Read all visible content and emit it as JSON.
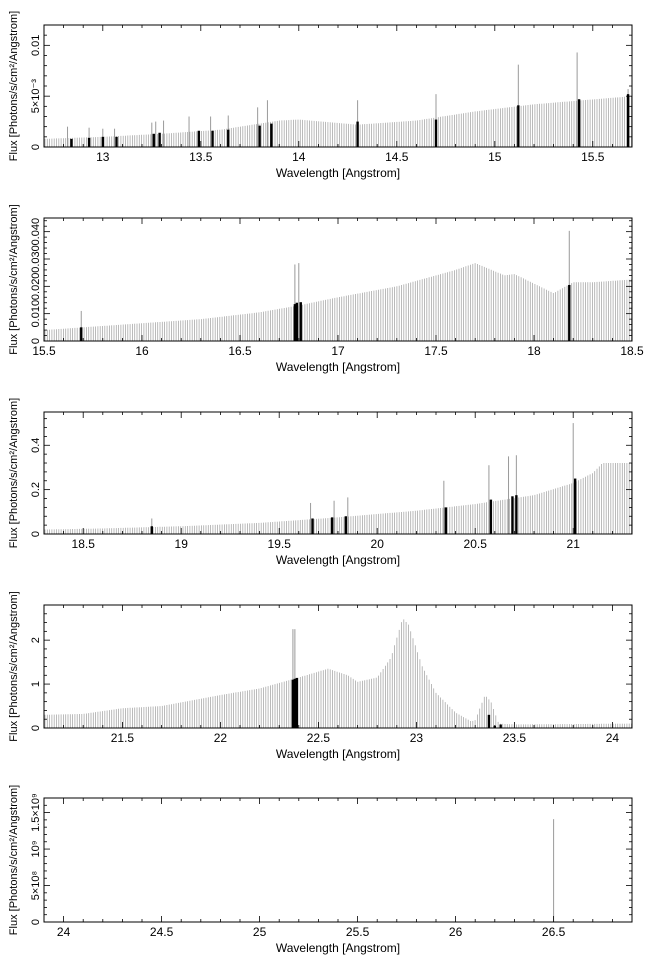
{
  "chart_data": [
    {
      "type": "bar",
      "xlabel": "Wavelength [Angstrom]",
      "ylabel": "Flux [Photons/s/cm²/Angstrom]",
      "xlim": [
        12.7,
        15.7
      ],
      "ylim": [
        0,
        0.012
      ],
      "xticks": [
        13,
        13.5,
        14,
        14.5,
        15,
        15.5
      ],
      "xtick_labels": [
        "13",
        "13.5",
        "14",
        "14.5",
        "15",
        "15.5"
      ],
      "yticks": [
        0,
        0.005,
        0.01
      ],
      "ytick_labels": [
        "0",
        "5×10⁻³",
        "0.01"
      ],
      "continuum": [
        [
          12.7,
          0.0008
        ],
        [
          13.0,
          0.001
        ],
        [
          13.3,
          0.0013
        ],
        [
          13.6,
          0.0017
        ],
        [
          13.9,
          0.0026
        ],
        [
          14.0,
          0.0027
        ],
        [
          14.3,
          0.0022
        ],
        [
          14.6,
          0.0026
        ],
        [
          14.9,
          0.0035
        ],
        [
          15.2,
          0.0042
        ],
        [
          15.45,
          0.0046
        ],
        [
          15.7,
          0.005
        ]
      ],
      "lines": [
        [
          12.82,
          0.002
        ],
        [
          12.93,
          0.0019
        ],
        [
          13.0,
          0.0018
        ],
        [
          13.06,
          0.0018
        ],
        [
          13.25,
          0.0024
        ],
        [
          13.27,
          0.0025
        ],
        [
          13.31,
          0.0026
        ],
        [
          13.44,
          0.003
        ],
        [
          13.55,
          0.003
        ],
        [
          13.64,
          0.0031
        ],
        [
          13.79,
          0.0039
        ],
        [
          13.84,
          0.0046
        ],
        [
          14.3,
          0.0046
        ],
        [
          14.7,
          0.0052
        ],
        [
          15.12,
          0.0081
        ],
        [
          15.42,
          0.0093
        ],
        [
          15.68,
          0.0057
        ]
      ],
      "strong": [
        [
          12.84,
          0.0008
        ],
        [
          12.93,
          0.0009
        ],
        [
          13.0,
          0.001
        ],
        [
          13.07,
          0.001
        ],
        [
          13.26,
          0.0013
        ],
        [
          13.29,
          0.0014
        ],
        [
          13.49,
          0.0016
        ],
        [
          13.56,
          0.0016
        ],
        [
          13.64,
          0.0017
        ],
        [
          13.8,
          0.0021
        ],
        [
          13.86,
          0.0023
        ],
        [
          14.3,
          0.0025
        ],
        [
          14.7,
          0.0027
        ],
        [
          15.12,
          0.0041
        ],
        [
          15.43,
          0.0047
        ],
        [
          15.68,
          0.0052
        ]
      ]
    },
    {
      "type": "bar",
      "xlabel": "Wavelength [Angstrom]",
      "ylabel": "Flux [Photons/s/cm²/Angstrom]",
      "xlim": [
        15.5,
        18.5
      ],
      "ylim": [
        0,
        0.045
      ],
      "xticks": [
        15.5,
        16,
        16.5,
        17,
        17.5,
        18,
        18.5
      ],
      "xtick_labels": [
        "15.5",
        "16",
        "16.5",
        "17",
        "17.5",
        "18",
        "18.5"
      ],
      "yticks": [
        0,
        0.01,
        0.02,
        0.03,
        0.04
      ],
      "ytick_labels": [
        "0",
        "0.010",
        "0.020",
        "0.030",
        "0.040"
      ],
      "continuum": [
        [
          15.5,
          0.004
        ],
        [
          15.7,
          0.005
        ],
        [
          16.0,
          0.0065
        ],
        [
          16.3,
          0.008
        ],
        [
          16.6,
          0.0105
        ],
        [
          16.8,
          0.013
        ],
        [
          17.0,
          0.016
        ],
        [
          17.3,
          0.02
        ],
        [
          17.6,
          0.026
        ],
        [
          17.7,
          0.0285
        ],
        [
          17.75,
          0.027
        ],
        [
          17.85,
          0.024
        ],
        [
          17.9,
          0.0245
        ],
        [
          18.0,
          0.021
        ],
        [
          18.1,
          0.0175
        ],
        [
          18.2,
          0.0215
        ],
        [
          18.3,
          0.0215
        ],
        [
          18.5,
          0.0225
        ]
      ],
      "lines": [
        [
          15.69,
          0.011
        ],
        [
          16.78,
          0.028
        ],
        [
          16.8,
          0.0285
        ],
        [
          18.18,
          0.0403
        ]
      ],
      "strong": [
        [
          15.69,
          0.005
        ],
        [
          16.78,
          0.0135
        ],
        [
          16.79,
          0.014
        ],
        [
          16.81,
          0.0142
        ],
        [
          18.18,
          0.0205
        ]
      ]
    },
    {
      "type": "bar",
      "xlabel": "Wavelength [Angstrom]",
      "ylabel": "Flux [Photons/s/cm²/Angstrom]",
      "xlim": [
        18.3,
        21.3
      ],
      "ylim": [
        0,
        0.55
      ],
      "xticks": [
        18.5,
        19,
        19.5,
        20,
        20.5,
        21
      ],
      "xtick_labels": [
        "18.5",
        "19",
        "19.5",
        "20",
        "20.5",
        "21"
      ],
      "yticks": [
        0,
        0.2,
        0.4
      ],
      "ytick_labels": [
        "0",
        "0.2",
        "0.4"
      ],
      "continuum": [
        [
          18.3,
          0.02
        ],
        [
          18.6,
          0.025
        ],
        [
          19.0,
          0.035
        ],
        [
          19.4,
          0.05
        ],
        [
          19.8,
          0.075
        ],
        [
          20.2,
          0.105
        ],
        [
          20.5,
          0.135
        ],
        [
          20.8,
          0.175
        ],
        [
          21.0,
          0.23
        ],
        [
          21.1,
          0.275
        ],
        [
          21.15,
          0.32
        ],
        [
          21.3,
          0.32
        ]
      ],
      "lines": [
        [
          18.85,
          0.07
        ],
        [
          19.66,
          0.14
        ],
        [
          19.78,
          0.15
        ],
        [
          19.85,
          0.165
        ],
        [
          20.34,
          0.24
        ],
        [
          20.57,
          0.31
        ],
        [
          20.67,
          0.35
        ],
        [
          20.71,
          0.355
        ],
        [
          21.0,
          0.5
        ]
      ],
      "strong": [
        [
          18.85,
          0.035
        ],
        [
          19.67,
          0.07
        ],
        [
          19.77,
          0.075
        ],
        [
          19.84,
          0.08
        ],
        [
          20.35,
          0.12
        ],
        [
          20.58,
          0.155
        ],
        [
          20.69,
          0.17
        ],
        [
          20.71,
          0.175
        ],
        [
          21.01,
          0.25
        ]
      ]
    },
    {
      "type": "bar",
      "xlabel": "Wavelength [Angstrom]",
      "ylabel": "Flux [Photons/s/cm²/Angstrom]",
      "xlim": [
        21.1,
        24.1
      ],
      "ylim": [
        0,
        2.8
      ],
      "xticks": [
        21.5,
        22,
        22.5,
        23,
        23.5,
        24
      ],
      "xtick_labels": [
        "21.5",
        "22",
        "22.5",
        "23",
        "23.5",
        "24"
      ],
      "yticks": [
        0,
        1,
        2
      ],
      "ytick_labels": [
        "0",
        "1",
        "2"
      ],
      "continuum": [
        [
          21.1,
          0.3
        ],
        [
          21.3,
          0.32
        ],
        [
          21.5,
          0.45
        ],
        [
          21.7,
          0.5
        ],
        [
          22.0,
          0.75
        ],
        [
          22.2,
          0.9
        ],
        [
          22.4,
          1.15
        ],
        [
          22.55,
          1.35
        ],
        [
          22.65,
          1.2
        ],
        [
          22.7,
          1.05
        ],
        [
          22.8,
          1.15
        ],
        [
          22.87,
          1.6
        ],
        [
          22.93,
          2.5
        ],
        [
          22.96,
          2.35
        ],
        [
          23.03,
          1.4
        ],
        [
          23.1,
          0.8
        ],
        [
          23.2,
          0.35
        ],
        [
          23.28,
          0.15
        ],
        [
          23.3,
          0.18
        ],
        [
          23.35,
          0.75
        ],
        [
          23.38,
          0.6
        ],
        [
          23.42,
          0.1
        ],
        [
          23.5,
          0.08
        ],
        [
          24.1,
          0.1
        ]
      ],
      "lines": [
        [
          22.37,
          2.25
        ],
        [
          22.38,
          2.25
        ]
      ],
      "strong": [
        [
          22.37,
          1.1
        ],
        [
          22.38,
          1.12
        ],
        [
          22.39,
          1.14
        ],
        [
          23.37,
          0.3
        ],
        [
          23.4,
          0.05
        ],
        [
          23.43,
          0.08
        ]
      ]
    },
    {
      "type": "bar",
      "xlabel": "Wavelength [Angstrom]",
      "ylabel": "Flux [Photons/s/cm²/Angstrom]",
      "xlim": [
        23.9,
        26.9
      ],
      "ylim": [
        0,
        1700000000.0
      ],
      "xticks": [
        24,
        24.5,
        25,
        25.5,
        26,
        26.5
      ],
      "xtick_labels": [
        "24",
        "24.5",
        "25",
        "25.5",
        "26",
        "26.5"
      ],
      "yticks": [
        0,
        500000000,
        1000000000,
        1500000000
      ],
      "ytick_labels": [
        "0",
        "5×10⁸",
        "10⁹",
        "1.5×10⁹"
      ],
      "continuum": [
        [
          23.9,
          0
        ],
        [
          26.9,
          0
        ]
      ],
      "lines": [
        [
          26.5,
          1410000000.0
        ]
      ],
      "strong": []
    }
  ]
}
